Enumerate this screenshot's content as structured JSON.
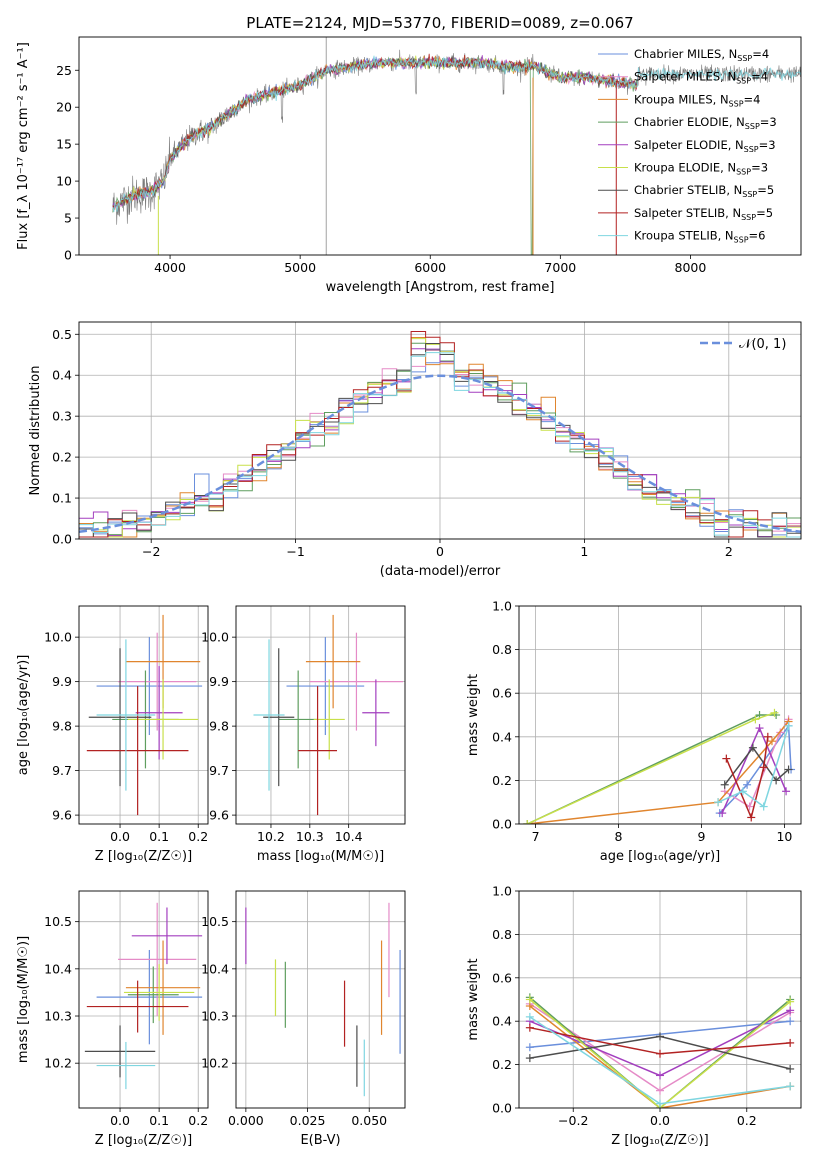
{
  "figure_title": "PLATE=2124, MJD=53770, FIBERID=0089, z=0.067",
  "models": [
    {
      "name": "Chabrier MILES",
      "nssp": "4",
      "color": "#6a8fdc"
    },
    {
      "name": "Salpeter MILES",
      "nssp": "4",
      "color": "#e58bc7"
    },
    {
      "name": "Kroupa MILES",
      "nssp": "4",
      "color": "#e0852e"
    },
    {
      "name": "Chabrier ELODIE",
      "nssp": "3",
      "color": "#5f9e5f"
    },
    {
      "name": "Salpeter ELODIE",
      "nssp": "3",
      "color": "#a33fbf"
    },
    {
      "name": "Kroupa ELODIE",
      "nssp": "3",
      "color": "#c8e04a"
    },
    {
      "name": "Chabrier STELIB",
      "nssp": "5",
      "color": "#4d4d4d"
    },
    {
      "name": "Salpeter STELIB",
      "nssp": "5",
      "color": "#b22222"
    },
    {
      "name": "Kroupa STELIB",
      "nssp": "6",
      "color": "#7fd6e0"
    }
  ],
  "chart_data": [
    {
      "id": "spectrum",
      "type": "line",
      "xlabel": "wavelength [Angstrom, rest frame]",
      "ylabel": "Flux [f_λ 10⁻¹⁷ erg cm⁻² s⁻¹ A⁻¹]",
      "xlim": [
        3300,
        8850
      ],
      "ylim": [
        0,
        29.5
      ],
      "xticks": [
        4000,
        5000,
        6000,
        7000,
        8000
      ],
      "yticks": [
        0,
        5,
        10,
        15,
        20,
        25
      ],
      "legend": "top-right",
      "continuum": {
        "x": [
          3560,
          3700,
          3850,
          3950,
          4000,
          4100,
          4200,
          4300,
          4400,
          4600,
          4800,
          5000,
          5200,
          5400,
          5600,
          5800,
          6000,
          6200,
          6400,
          6600,
          6800,
          7000,
          7200,
          7400,
          7600
        ],
        "y": [
          6.5,
          8,
          8.5,
          10,
          13,
          15,
          16.5,
          17,
          18.5,
          21,
          22,
          23,
          25,
          25.5,
          26,
          26,
          26,
          26,
          26,
          25.5,
          25.5,
          24,
          24,
          23.5,
          23
        ]
      },
      "data_extends_to": 8850,
      "data_end_value": 24.5
    },
    {
      "id": "residuals",
      "type": "histogram",
      "xlabel": "(data-model)/error",
      "ylabel": "Normed distribution",
      "xlim": [
        -2.5,
        2.5
      ],
      "ylim": [
        0,
        0.53
      ],
      "xticks": [
        -2,
        -1,
        0,
        1,
        2
      ],
      "yticks": [
        0.0,
        0.1,
        0.2,
        0.3,
        0.4,
        0.5
      ],
      "grid": true,
      "bin_width": 0.1,
      "gaussian_label": "𝒩(0, 1)",
      "gaussian_color": "#6a8fdc",
      "legend": "top-right"
    },
    {
      "id": "age_vs_Z",
      "type": "errorbar",
      "xlabel": "Z [log₁₀(Z/Z☉)]",
      "ylabel": "age  [log₁₀(age/yr)]",
      "xlim": [
        -0.105,
        0.225
      ],
      "ylim": [
        9.58,
        10.07
      ],
      "xticks": [
        0.0,
        0.1,
        0.2
      ],
      "yticks": [
        9.6,
        9.7,
        9.8,
        9.9,
        10.0
      ],
      "grid": true,
      "points": [
        {
          "x": 0.075,
          "xerr": 0.135,
          "y": 9.89,
          "yerr": 0.11
        },
        {
          "x": 0.095,
          "xerr": 0.1,
          "y": 9.9,
          "yerr": 0.11
        },
        {
          "x": 0.11,
          "xerr": 0.095,
          "y": 9.945,
          "yerr": 0.105
        },
        {
          "x": 0.065,
          "xerr": 0.085,
          "y": 9.815,
          "yerr": 0.11
        },
        {
          "x": 0.1,
          "xerr": 0.06,
          "y": 9.83,
          "yerr": 0.105
        },
        {
          "x": 0.11,
          "xerr": 0.09,
          "y": 9.815,
          "yerr": 0.09
        },
        {
          "x": 0.0,
          "xerr": 0.08,
          "y": 9.82,
          "yerr": 0.155
        },
        {
          "x": 0.045,
          "xerr": 0.13,
          "y": 9.745,
          "yerr": 0.145
        },
        {
          "x": 0.015,
          "xerr": 0.075,
          "y": 9.825,
          "yerr": 0.17
        }
      ]
    },
    {
      "id": "age_vs_mass",
      "type": "errorbar",
      "xlabel": "mass [log₁₀(M/M☉)]",
      "ylabel": "",
      "xlim": [
        10.11,
        10.545
      ],
      "ylim": [
        9.58,
        10.07
      ],
      "xticks": [
        10.2,
        10.3,
        10.4
      ],
      "yticks": [
        9.6,
        9.7,
        9.8,
        9.9,
        10.0
      ],
      "grid": true,
      "points": [
        {
          "x": 10.34,
          "xerr": 0.1,
          "y": 9.89,
          "yerr": 0.11
        },
        {
          "x": 10.42,
          "xerr": 0.12,
          "y": 9.9,
          "yerr": 0.11
        },
        {
          "x": 10.36,
          "xerr": 0.07,
          "y": 9.945,
          "yerr": 0.105
        },
        {
          "x": 10.27,
          "xerr": 0.05,
          "y": 9.815,
          "yerr": 0.11
        },
        {
          "x": 10.47,
          "xerr": 0.035,
          "y": 9.83,
          "yerr": 0.075
        },
        {
          "x": 10.35,
          "xerr": 0.04,
          "y": 9.815,
          "yerr": 0.09
        },
        {
          "x": 10.22,
          "xerr": 0.04,
          "y": 9.82,
          "yerr": 0.155
        },
        {
          "x": 10.32,
          "xerr": 0.05,
          "y": 9.745,
          "yerr": 0.145
        },
        {
          "x": 10.195,
          "xerr": 0.04,
          "y": 9.825,
          "yerr": 0.17
        }
      ]
    },
    {
      "id": "weight_vs_age",
      "type": "line",
      "xlabel": "age  [log₁₀(age/yr)]",
      "ylabel": "mass weight",
      "xlim": [
        6.8,
        10.2
      ],
      "ylim": [
        0.0,
        1.0
      ],
      "xticks": [
        7,
        8,
        9,
        10
      ],
      "yticks": [
        0.0,
        0.2,
        0.4,
        0.6,
        0.8,
        1.0
      ],
      "grid": true,
      "series": [
        {
          "x": [
            9.22,
            9.55,
            10.05,
            10.08
          ],
          "y": [
            0.05,
            0.18,
            0.45,
            0.25
          ]
        },
        {
          "x": [
            9.28,
            9.58,
            9.95,
            10.05
          ],
          "y": [
            0.15,
            0.08,
            0.42,
            0.48
          ]
        },
        {
          "x": [
            6.9,
            9.2,
            9.85,
            10.05
          ],
          "y": [
            0.0,
            0.1,
            0.38,
            0.47
          ]
        },
        {
          "x": [
            6.9,
            9.7,
            9.9
          ],
          "y": [
            0.0,
            0.5,
            0.5
          ]
        },
        {
          "x": [
            9.25,
            9.7,
            10.02
          ],
          "y": [
            0.05,
            0.44,
            0.15
          ]
        },
        {
          "x": [
            6.9,
            9.65,
            9.88
          ],
          "y": [
            0.0,
            0.48,
            0.51
          ]
        },
        {
          "x": [
            9.28,
            9.62,
            9.9,
            10.05
          ],
          "y": [
            0.18,
            0.35,
            0.2,
            0.25
          ]
        },
        {
          "x": [
            9.3,
            9.6,
            9.75,
            9.8
          ],
          "y": [
            0.3,
            0.03,
            0.26,
            0.4
          ]
        },
        {
          "x": [
            9.2,
            9.5,
            9.75,
            10.05
          ],
          "y": [
            0.1,
            0.15,
            0.08,
            0.45
          ]
        }
      ]
    },
    {
      "id": "mass_vs_Z",
      "type": "errorbar",
      "xlabel": "Z [log₁₀(Z/Z☉)]",
      "ylabel": "mass [log₁₀(M/M☉)]",
      "xlim": [
        -0.105,
        0.225
      ],
      "ylim": [
        10.105,
        10.565
      ],
      "xticks": [
        0.0,
        0.1,
        0.2
      ],
      "yticks": [
        10.2,
        10.3,
        10.4,
        10.5
      ],
      "grid": true,
      "points": [
        {
          "x": 0.075,
          "xerr": 0.135,
          "y": 10.34,
          "yerr": 0.1
        },
        {
          "x": 0.095,
          "xerr": 0.1,
          "y": 10.42,
          "yerr": 0.12
        },
        {
          "x": 0.11,
          "xerr": 0.095,
          "y": 10.36,
          "yerr": 0.1
        },
        {
          "x": 0.085,
          "xerr": 0.065,
          "y": 10.345,
          "yerr": 0.06
        },
        {
          "x": 0.12,
          "xerr": 0.09,
          "y": 10.47,
          "yerr": 0.06
        },
        {
          "x": 0.1,
          "xerr": 0.09,
          "y": 10.35,
          "yerr": 0.06
        },
        {
          "x": 0.0,
          "xerr": 0.09,
          "y": 10.225,
          "yerr": 0.055
        },
        {
          "x": 0.045,
          "xerr": 0.13,
          "y": 10.32,
          "yerr": 0.055
        },
        {
          "x": 0.015,
          "xerr": 0.075,
          "y": 10.195,
          "yerr": 0.05
        }
      ]
    },
    {
      "id": "mass_vs_ebv",
      "type": "errorbar",
      "xlabel": "E(B-V)",
      "ylabel": "",
      "xlim": [
        -0.004,
        0.0645
      ],
      "ylim": [
        10.105,
        10.565
      ],
      "xticks": [
        0.0,
        0.025,
        0.05
      ],
      "yticks": [
        10.2,
        10.3,
        10.4,
        10.5
      ],
      "grid": true,
      "points": [
        {
          "x": 0.0625,
          "xerr": 0,
          "y": 10.33,
          "yerr": 0.11
        },
        {
          "x": 0.058,
          "xerr": 0,
          "y": 10.44,
          "yerr": 0.1
        },
        {
          "x": 0.055,
          "xerr": 0,
          "y": 10.36,
          "yerr": 0.1
        },
        {
          "x": 0.016,
          "xerr": 0,
          "y": 10.345,
          "yerr": 0.07
        },
        {
          "x": 0.0,
          "xerr": 0,
          "y": 10.47,
          "yerr": 0.06
        },
        {
          "x": 0.012,
          "xerr": 0,
          "y": 10.36,
          "yerr": 0.06
        },
        {
          "x": 0.045,
          "xerr": 0,
          "y": 10.215,
          "yerr": 0.065
        },
        {
          "x": 0.04,
          "xerr": 0,
          "y": 10.305,
          "yerr": 0.07
        },
        {
          "x": 0.048,
          "xerr": 0,
          "y": 10.19,
          "yerr": 0.06
        }
      ]
    },
    {
      "id": "weight_vs_Z",
      "type": "line",
      "xlabel": "Z [log₁₀(Z/Z☉)]",
      "ylabel": "mass weight",
      "xlim": [
        -0.325,
        0.325
      ],
      "ylim": [
        0.0,
        1.0
      ],
      "xticks": [
        -0.2,
        0.0,
        0.2
      ],
      "yticks": [
        0.0,
        0.2,
        0.4,
        0.6,
        0.8,
        1.0
      ],
      "grid": true,
      "series": [
        {
          "x": [
            -0.3,
            0.3
          ],
          "y": [
            0.28,
            0.4
          ]
        },
        {
          "x": [
            -0.3,
            0.0,
            0.3
          ],
          "y": [
            0.48,
            0.08,
            0.44
          ]
        },
        {
          "x": [
            -0.3,
            0.0,
            0.3
          ],
          "y": [
            0.47,
            0.0,
            0.1
          ]
        },
        {
          "x": [
            -0.3,
            0.0,
            0.3
          ],
          "y": [
            0.51,
            0.0,
            0.5
          ]
        },
        {
          "x": [
            -0.3,
            0.0,
            0.3
          ],
          "y": [
            0.4,
            0.15,
            0.45
          ]
        },
        {
          "x": [
            -0.3,
            0.0,
            0.3
          ],
          "y": [
            0.5,
            0.0,
            0.49
          ]
        },
        {
          "x": [
            -0.3,
            0.0,
            0.3
          ],
          "y": [
            0.23,
            0.33,
            0.18
          ]
        },
        {
          "x": [
            -0.3,
            0.0,
            0.3
          ],
          "y": [
            0.37,
            0.25,
            0.3
          ]
        },
        {
          "x": [
            -0.3,
            0.0,
            0.3
          ],
          "y": [
            0.42,
            0.02,
            0.1
          ]
        }
      ]
    }
  ]
}
